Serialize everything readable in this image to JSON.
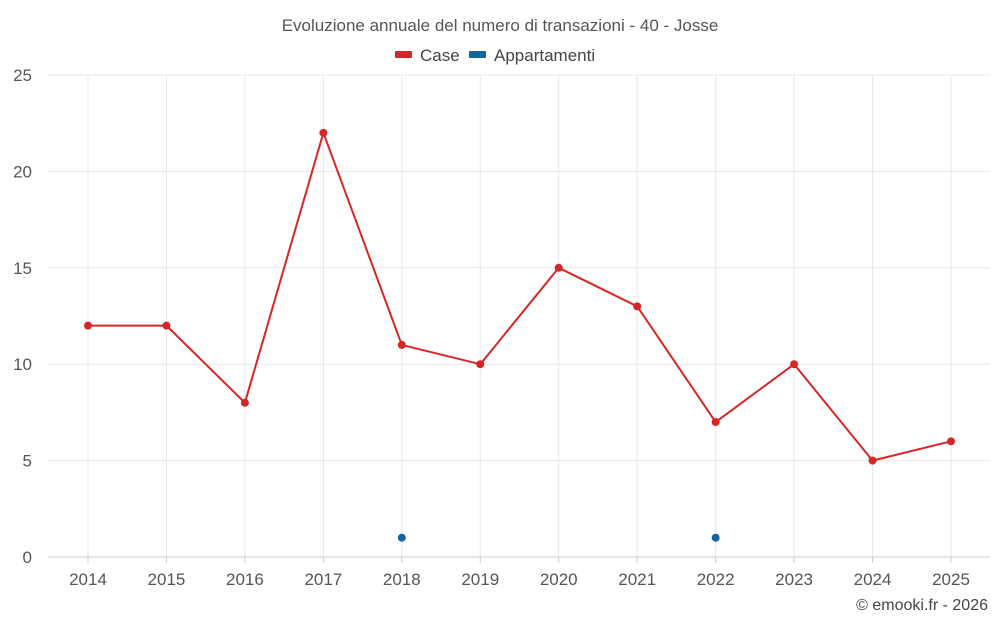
{
  "chart_data": {
    "type": "line",
    "title": "Evoluzione annuale del numero di transazioni - 40 - Josse",
    "categories": [
      "2014",
      "2015",
      "2016",
      "2017",
      "2018",
      "2019",
      "2020",
      "2021",
      "2022",
      "2023",
      "2024",
      "2025"
    ],
    "series": [
      {
        "name": "Case",
        "color": "#d62728",
        "values": [
          12,
          12,
          8,
          22,
          11,
          10,
          15,
          13,
          7,
          10,
          5,
          6
        ]
      },
      {
        "name": "Appartamenti",
        "color": "#1464a0",
        "values": [
          null,
          null,
          null,
          null,
          1,
          null,
          null,
          null,
          1,
          null,
          null,
          null
        ]
      }
    ],
    "ylim": [
      0,
      25
    ],
    "yticks": [
      0,
      5,
      10,
      15,
      20,
      25
    ],
    "grid": true,
    "legend_position": "top-center",
    "xlabel": "",
    "ylabel": ""
  },
  "credit": "© emooki.fr - 2026"
}
